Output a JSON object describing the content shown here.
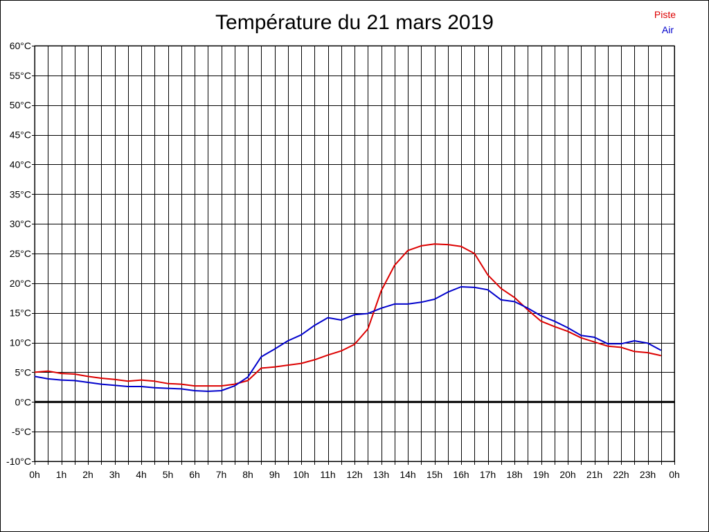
{
  "chart_data": {
    "type": "line",
    "title": "Température du 21 mars 2019",
    "xlabel": "",
    "ylabel": "",
    "x_tick_labels": [
      "0h",
      "1h",
      "2h",
      "3h",
      "4h",
      "5h",
      "6h",
      "7h",
      "8h",
      "9h",
      "10h",
      "11h",
      "12h",
      "13h",
      "14h",
      "15h",
      "16h",
      "17h",
      "18h",
      "19h",
      "20h",
      "21h",
      "22h",
      "23h",
      "0h"
    ],
    "y_tick_labels": [
      "-10°C",
      "-5°C",
      "0°C",
      "5°C",
      "10°C",
      "15°C",
      "20°C",
      "25°C",
      "30°C",
      "35°C",
      "40°C",
      "45°C",
      "50°C",
      "55°C",
      "60°C"
    ],
    "xlim": [
      0,
      24
    ],
    "ylim": [
      -10,
      60
    ],
    "y_step": 5,
    "grid": true,
    "zero_line": true,
    "legend_position": "top-right",
    "series": [
      {
        "name": "Piste",
        "color": "#dd0000",
        "x": [
          0,
          0.5,
          1,
          1.5,
          2,
          2.5,
          3,
          3.5,
          4,
          4.5,
          5,
          5.5,
          6,
          6.5,
          7,
          7.5,
          8,
          8.5,
          9,
          9.5,
          10,
          10.5,
          11,
          11.5,
          12,
          12.5,
          13,
          13.5,
          14,
          14.5,
          15,
          15.5,
          16,
          16.5,
          17,
          17.5,
          18,
          18.5,
          19,
          19.5,
          20,
          20.5,
          21,
          21.5,
          22,
          22.5,
          23,
          23.5
        ],
        "values": [
          5.0,
          5.2,
          4.8,
          4.7,
          4.3,
          4.0,
          3.8,
          3.5,
          3.7,
          3.5,
          3.1,
          3.0,
          2.7,
          2.7,
          2.7,
          3.0,
          3.6,
          5.7,
          5.9,
          6.2,
          6.5,
          7.1,
          7.9,
          8.6,
          9.7,
          12.3,
          18.7,
          23.0,
          25.5,
          26.3,
          26.6,
          26.5,
          26.2,
          25.0,
          21.4,
          19.1,
          17.6,
          15.5,
          13.6,
          12.7,
          11.9,
          10.8,
          10.1,
          9.4,
          9.2,
          8.5,
          8.3,
          7.8
        ]
      },
      {
        "name": "Air",
        "color": "#0000cc",
        "x": [
          0,
          0.5,
          1,
          1.5,
          2,
          2.5,
          3,
          3.5,
          4,
          4.5,
          5,
          5.5,
          6,
          6.5,
          7,
          7.5,
          8,
          8.5,
          9,
          9.5,
          10,
          10.5,
          11,
          11.5,
          12,
          12.5,
          13,
          13.5,
          14,
          14.5,
          15,
          15.5,
          16,
          16.5,
          17,
          17.5,
          18,
          18.5,
          19,
          19.5,
          20,
          20.5,
          21,
          21.5,
          22,
          22.5,
          23,
          23.5
        ],
        "values": [
          4.3,
          3.9,
          3.7,
          3.6,
          3.3,
          3.0,
          2.8,
          2.6,
          2.6,
          2.4,
          2.3,
          2.2,
          1.9,
          1.8,
          1.9,
          2.7,
          4.2,
          7.6,
          8.9,
          10.3,
          11.3,
          12.9,
          14.2,
          13.8,
          14.7,
          14.9,
          15.8,
          16.5,
          16.5,
          16.8,
          17.3,
          18.5,
          19.4,
          19.3,
          18.9,
          17.2,
          16.9,
          15.8,
          14.5,
          13.6,
          12.5,
          11.2,
          10.9,
          9.8,
          9.8,
          10.3,
          9.9,
          8.7
        ]
      }
    ]
  }
}
